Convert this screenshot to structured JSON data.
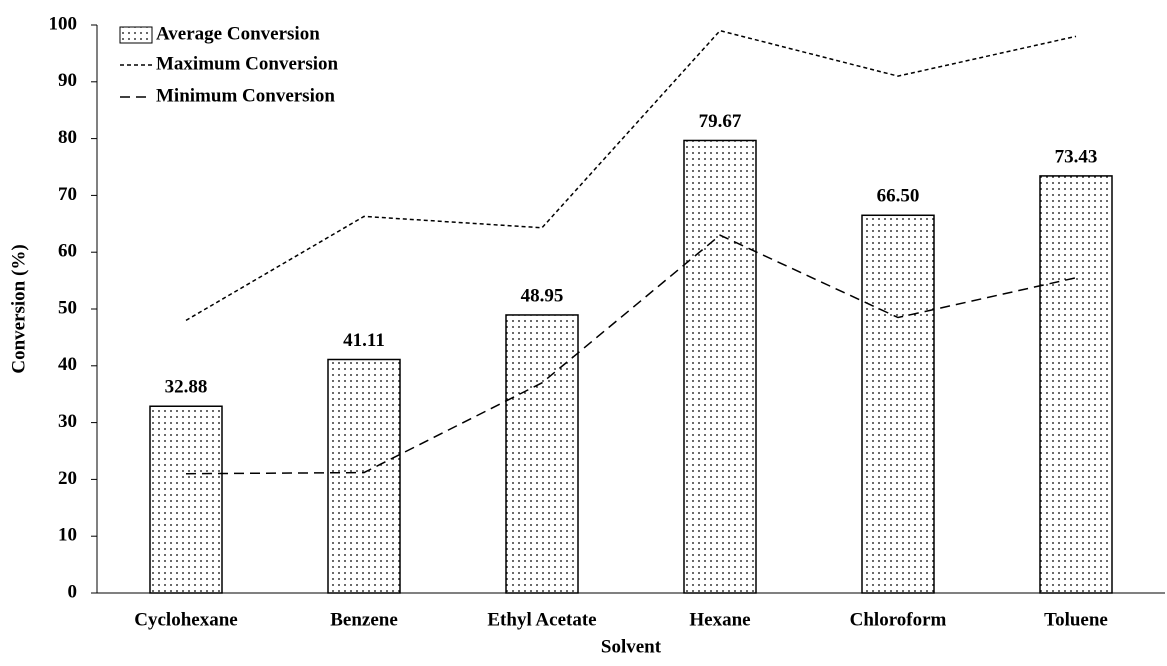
{
  "chart_data": {
    "type": "bar-line",
    "x_label": "Solvent",
    "y_label": "Conversion (%)",
    "categories": [
      "Cyclohexane",
      "Benzene",
      "Ethyl Acetate",
      "Hexane",
      "Chloroform",
      "Toluene"
    ],
    "series": [
      {
        "name": "Average Conversion",
        "type": "bar",
        "color": "#000000",
        "pattern": "dots",
        "values": [
          32.88,
          41.11,
          48.95,
          79.67,
          66.5,
          73.43
        ],
        "value_labels": [
          "32.88",
          "41.11",
          "48.95",
          "79.67",
          "66.50",
          "73.43"
        ]
      },
      {
        "name": "Maximum Conversion",
        "type": "line",
        "color": "#000000",
        "dash": "short",
        "values": [
          48,
          66.3,
          64.3,
          99,
          91,
          98
        ]
      },
      {
        "name": "Minimum Conversion",
        "type": "line",
        "color": "#000000",
        "dash": "long",
        "values": [
          21,
          21.2,
          37,
          63,
          48.5,
          55.5
        ]
      }
    ],
    "ylim": [
      0,
      100
    ],
    "yticks": [
      0,
      10,
      20,
      30,
      40,
      50,
      60,
      70,
      80,
      90,
      100
    ],
    "grid": false,
    "legend": "top-left"
  }
}
